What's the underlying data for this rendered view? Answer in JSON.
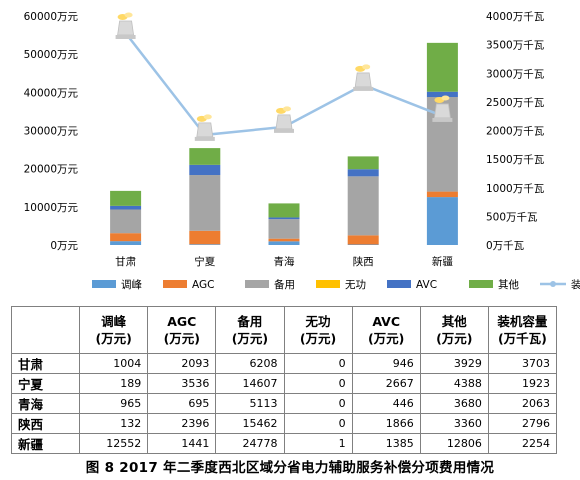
{
  "chart_data": {
    "type": "bar",
    "stacked": true,
    "categories": [
      "甘肃",
      "宁夏",
      "青海",
      "陕西",
      "新疆"
    ],
    "series": [
      {
        "name": "调峰",
        "color": "#5b9bd5",
        "values": [
          1004,
          189,
          965,
          132,
          12552
        ]
      },
      {
        "name": "AGC",
        "color": "#ed7d31",
        "values": [
          2093,
          3536,
          695,
          2396,
          1441
        ]
      },
      {
        "name": "备用",
        "color": "#a5a5a5",
        "values": [
          6208,
          14607,
          5113,
          15462,
          24778
        ]
      },
      {
        "name": "无功",
        "color": "#ffc000",
        "values": [
          0,
          0,
          0,
          0,
          1
        ]
      },
      {
        "name": "AVC",
        "color": "#4472c4",
        "values": [
          946,
          2667,
          446,
          1866,
          1385
        ]
      },
      {
        "name": "其他",
        "color": "#70ad47",
        "values": [
          3929,
          4388,
          3680,
          3360,
          12806
        ]
      }
    ],
    "line_series": {
      "name": "装机容量",
      "color": "#9dc3e6",
      "values": [
        3703,
        1923,
        2063,
        2796,
        2254
      ]
    },
    "y_left": {
      "min": 0,
      "max": 60000,
      "step": 10000,
      "suffix": "万元"
    },
    "y_right": {
      "min": 0,
      "max": 4000,
      "step": 500,
      "suffix": "万千瓦"
    },
    "left_ticks": [
      "0万元",
      "10000万元",
      "20000万元",
      "30000万元",
      "40000万元",
      "50000万元",
      "60000万元"
    ],
    "right_ticks": [
      "0万千瓦",
      "500万千瓦",
      "1000万千瓦",
      "1500万千瓦",
      "2000万千瓦",
      "2500万千瓦",
      "3000万千瓦",
      "3500万千瓦",
      "4000万千瓦"
    ],
    "grid": false,
    "legend_position": "bottom"
  },
  "table": {
    "headers": [
      [
        "",
        ""
      ],
      [
        "调峰",
        "(万元)"
      ],
      [
        "AGC",
        "(万元)"
      ],
      [
        "备用",
        "(万元)"
      ],
      [
        "无功",
        "(万元)"
      ],
      [
        "AVC",
        "(万元)"
      ],
      [
        "其他",
        "(万元)"
      ],
      [
        "装机容量",
        "(万千瓦)"
      ]
    ],
    "rows": [
      {
        "region": "甘肃",
        "cells": [
          "1004",
          "2093",
          "6208",
          "0",
          "946",
          "3929",
          "3703"
        ]
      },
      {
        "region": "宁夏",
        "cells": [
          "189",
          "3536",
          "14607",
          "0",
          "2667",
          "4388",
          "1923"
        ]
      },
      {
        "region": "青海",
        "cells": [
          "965",
          "695",
          "5113",
          "0",
          "446",
          "3680",
          "2063"
        ]
      },
      {
        "region": "陕西",
        "cells": [
          "132",
          "2396",
          "15462",
          "0",
          "1866",
          "3360",
          "2796"
        ]
      },
      {
        "region": "新疆",
        "cells": [
          "12552",
          "1441",
          "24778",
          "1",
          "1385",
          "12806",
          "2254"
        ]
      }
    ]
  },
  "caption": "图 8   2017 年二季度西北区域分省电力辅助服务补偿分项费用情况"
}
